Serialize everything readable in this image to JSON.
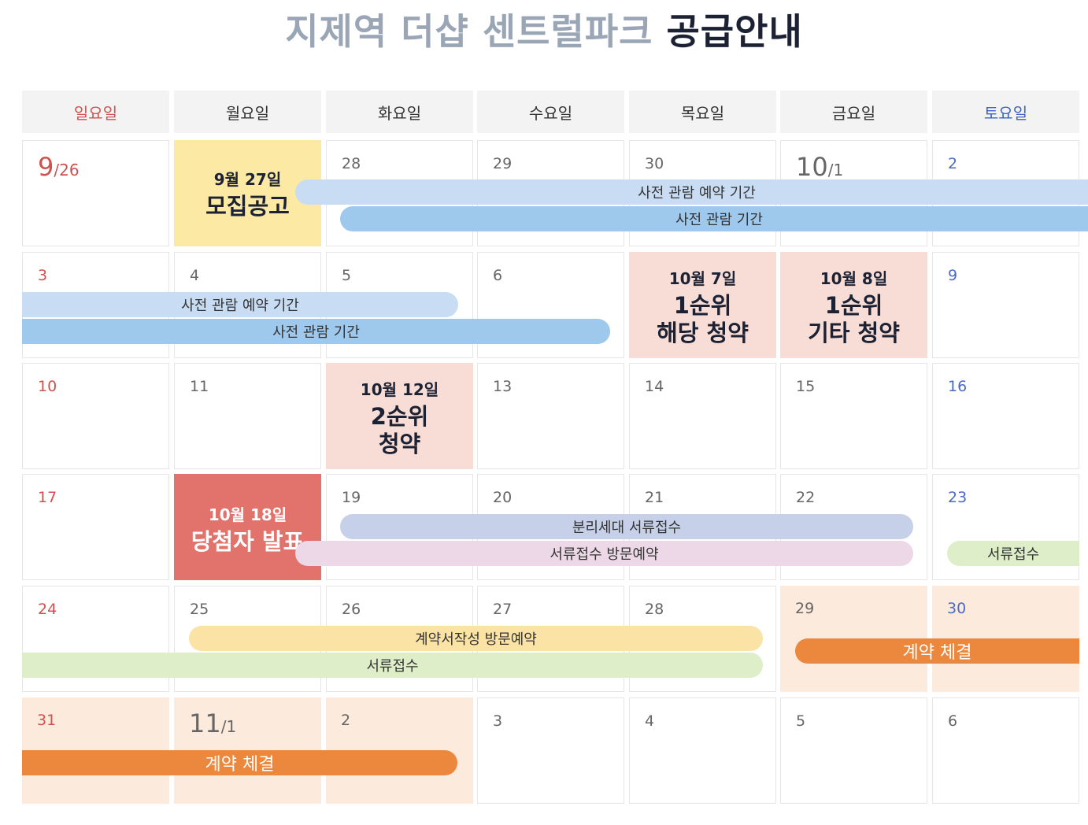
{
  "title": {
    "light": "지제역 더샵 센트럴파크",
    "bold": "공급안내"
  },
  "weekdays": [
    "일요일",
    "월요일",
    "화요일",
    "수요일",
    "목요일",
    "금요일",
    "토요일"
  ],
  "weeks": [
    [
      {
        "n": "9",
        "s": "/26"
      },
      {
        "n": ""
      },
      {
        "n": "28"
      },
      {
        "n": "29"
      },
      {
        "n": "30"
      },
      {
        "n": "10",
        "s": "/1"
      },
      {
        "n": "2"
      }
    ],
    [
      {
        "n": "3"
      },
      {
        "n": "4"
      },
      {
        "n": "5"
      },
      {
        "n": "6"
      },
      {
        "n": ""
      },
      {
        "n": ""
      },
      {
        "n": "9"
      }
    ],
    [
      {
        "n": "10"
      },
      {
        "n": "11"
      },
      {
        "n": ""
      },
      {
        "n": "13"
      },
      {
        "n": "14"
      },
      {
        "n": "15"
      },
      {
        "n": "16"
      }
    ],
    [
      {
        "n": "17"
      },
      {
        "n": ""
      },
      {
        "n": "19"
      },
      {
        "n": "20"
      },
      {
        "n": "21"
      },
      {
        "n": "22"
      },
      {
        "n": "23"
      }
    ],
    [
      {
        "n": "24"
      },
      {
        "n": "25"
      },
      {
        "n": "26"
      },
      {
        "n": "27"
      },
      {
        "n": "28"
      },
      {
        "n": "29"
      },
      {
        "n": "30"
      }
    ],
    [
      {
        "n": "31"
      },
      {
        "n": "11",
        "s": "/1"
      },
      {
        "n": "2"
      },
      {
        "n": "3"
      },
      {
        "n": "4"
      },
      {
        "n": "5"
      },
      {
        "n": "6"
      }
    ]
  ],
  "events": {
    "recruit": {
      "date": "9월 27일",
      "title": "모집공고"
    },
    "first_local": {
      "date": "10월 7일",
      "line1": "1순위",
      "line2": "해당 청약"
    },
    "first_other": {
      "date": "10월 8일",
      "line1": "1순위",
      "line2": "기타 청약"
    },
    "second": {
      "date": "10월 12일",
      "line1": "2순위",
      "line2": "청약"
    },
    "winners": {
      "date": "10월 18일",
      "title": "당첨자 발표"
    }
  },
  "bars": {
    "preview_reservation": "사전 관람 예약 기간",
    "preview_period": "사전 관람 기간",
    "split_household_docs": "분리세대 서류접수",
    "docs_visit_reservation": "서류접수 방문예약",
    "docs_receipt": "서류접수",
    "contract_writing_reservation": "계약서작성 방문예약",
    "contract_signing": "계약 체결"
  },
  "colors": {
    "sunday": "#d0524f",
    "saturday": "#4b6ac7",
    "recruit_bg": "#fbe9a4",
    "subscription_bg": "#f8ddd6",
    "winners_bg": "#e1736c",
    "contract_bg": "#fcebdc",
    "preview_reservation_bar": "#c8ddf3",
    "preview_period_bar": "#9ec8ec",
    "split_docs_bar": "#c6d0e9",
    "docs_visit_bar": "#ecd8e6",
    "docs_receipt_bar": "#deeec8",
    "contract_writing_bar": "#fbe3a6",
    "contract_signing_bar": "#ec883e"
  }
}
